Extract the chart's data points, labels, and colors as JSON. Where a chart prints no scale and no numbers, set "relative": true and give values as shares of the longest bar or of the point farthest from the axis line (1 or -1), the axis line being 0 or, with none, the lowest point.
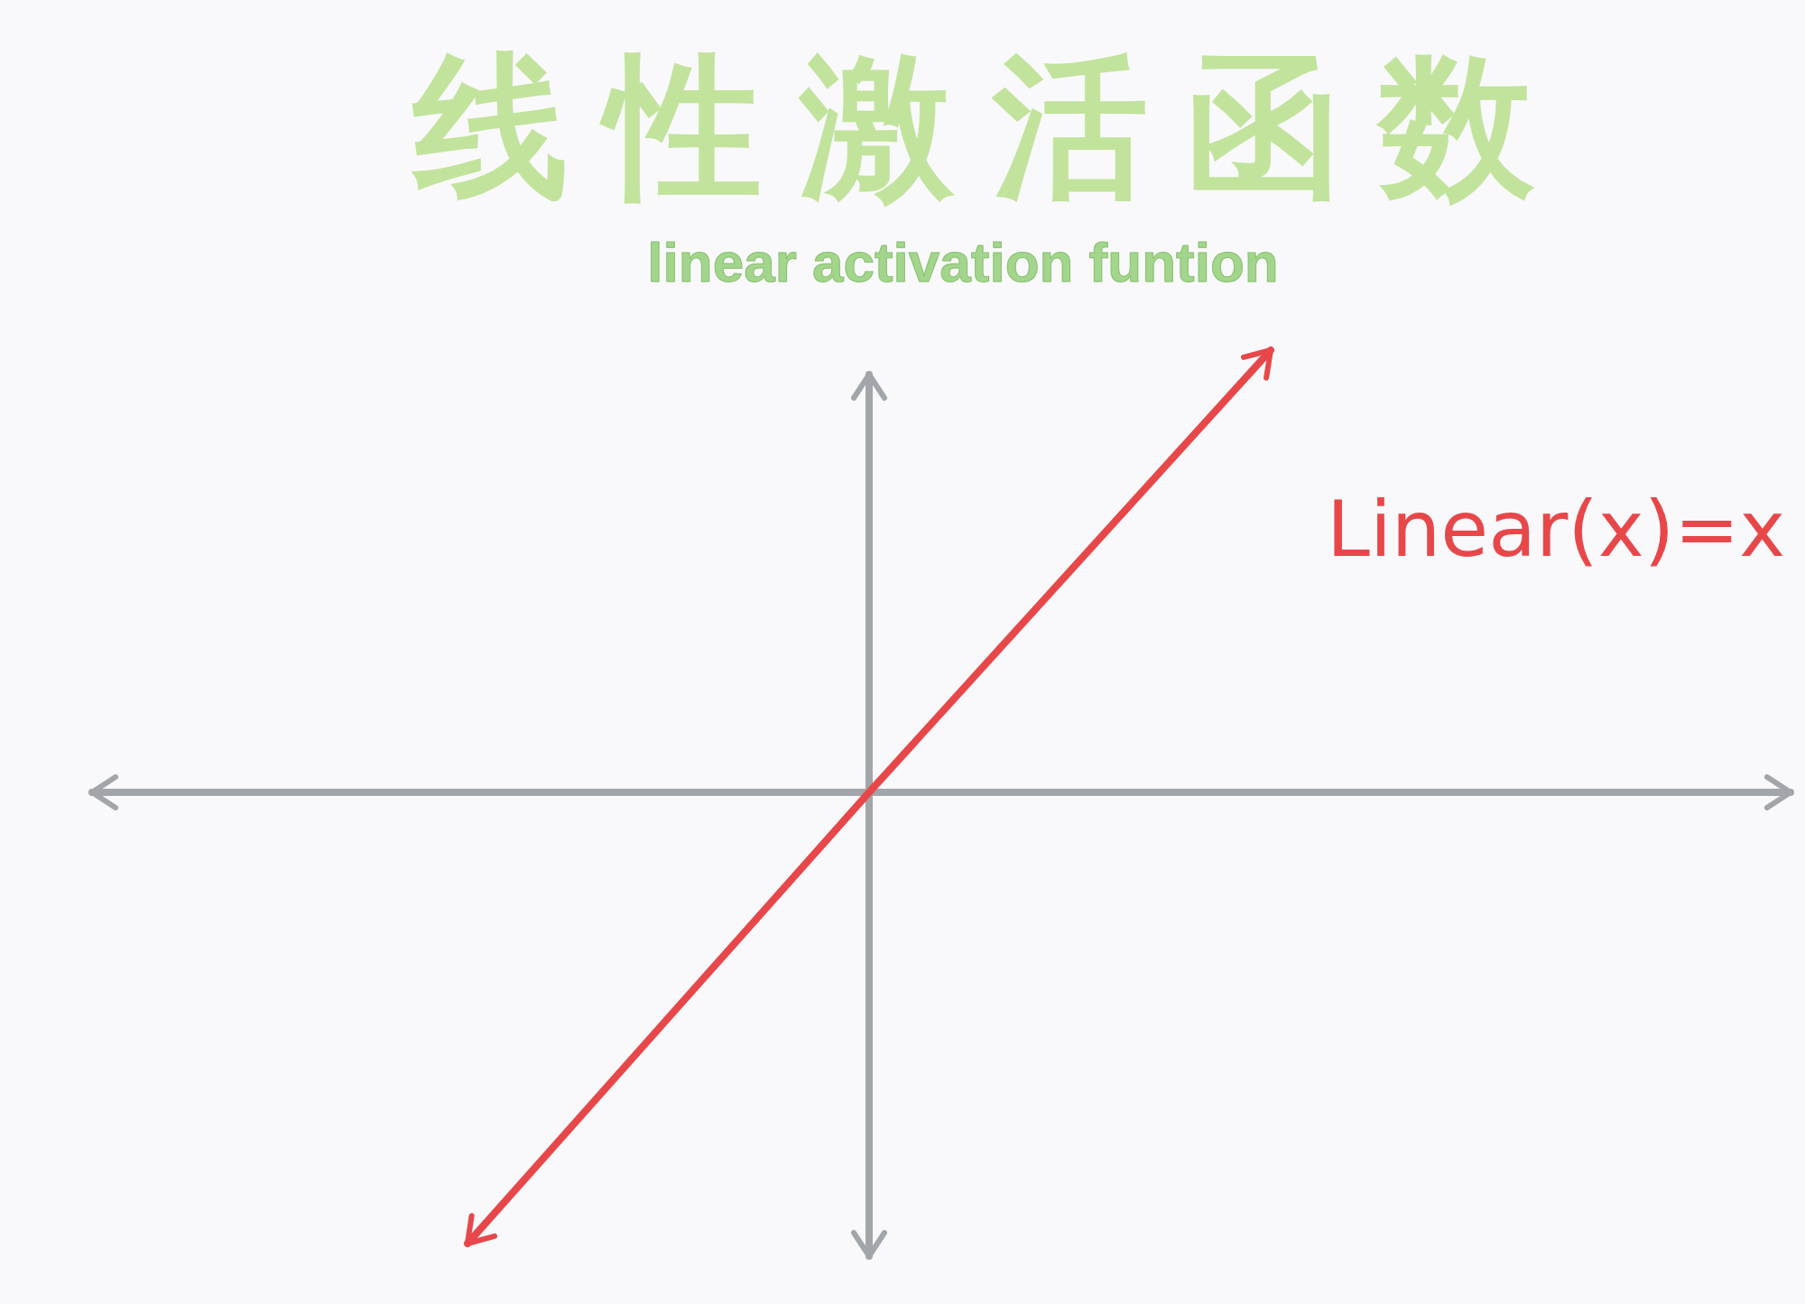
{
  "chart_data": {
    "type": "line",
    "title": "线性激活函数",
    "subtitle": "linear activation funtion",
    "relative": true,
    "categories": [
      null,
      null,
      null
    ],
    "series": [
      {
        "name": "Linear(x)=x",
        "color": "#e8474a",
        "values": [
          -1,
          0,
          0.98
        ]
      }
    ]
  }
}
